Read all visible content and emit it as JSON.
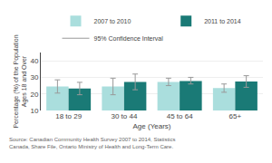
{
  "chart_data": {
    "type": "bar",
    "categories": [
      "18 to 29",
      "30 to 44",
      "45 to 64",
      "65+"
    ],
    "series": [
      {
        "name": "2007 to 2010",
        "color": "#aadedd",
        "values": [
          24.5,
          24.5,
          27.2,
          23.5
        ],
        "ci_low": [
          20.5,
          19.5,
          25.0,
          21.0
        ],
        "ci_high": [
          28.5,
          29.5,
          29.5,
          26.0
        ]
      },
      {
        "name": "2011 to 2014",
        "color": "#1a7a76",
        "values": [
          23.2,
          27.2,
          27.8,
          27.5
        ],
        "ci_low": [
          19.5,
          22.5,
          26.0,
          24.0
        ],
        "ci_high": [
          27.0,
          32.0,
          30.0,
          31.0
        ]
      }
    ],
    "ci": {
      "name": "95% Confidence Interval",
      "color": "#999999"
    },
    "xlabel": "Age (Years)",
    "ylabel": "Percentage (%) of the Population\nAges 18 and Over",
    "ylim": [
      10,
      45
    ],
    "yticks": [
      10,
      20,
      30,
      40
    ],
    "grid": true,
    "source": "Source: Canadian Community Health Survey 2007 to 2014, Statistics Canada, Share File, Ontario Ministry of Health and Long-Term Care."
  }
}
